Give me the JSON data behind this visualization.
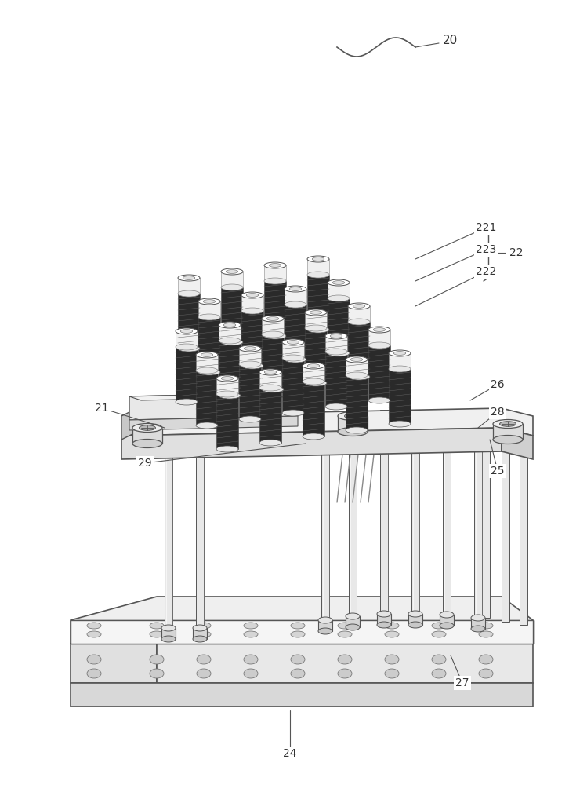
{
  "bg_color": "#ffffff",
  "lc": "#555555",
  "lc_thin": "#777777",
  "fc_light": "#f2f2f2",
  "fc_mid": "#e0e0e0",
  "fc_dark": "#c8c8c8",
  "fc_coil_body": "#3a3a3a",
  "fc_coil_thread": "#555555",
  "figsize": [
    7.26,
    10.0
  ],
  "dpi": 100
}
